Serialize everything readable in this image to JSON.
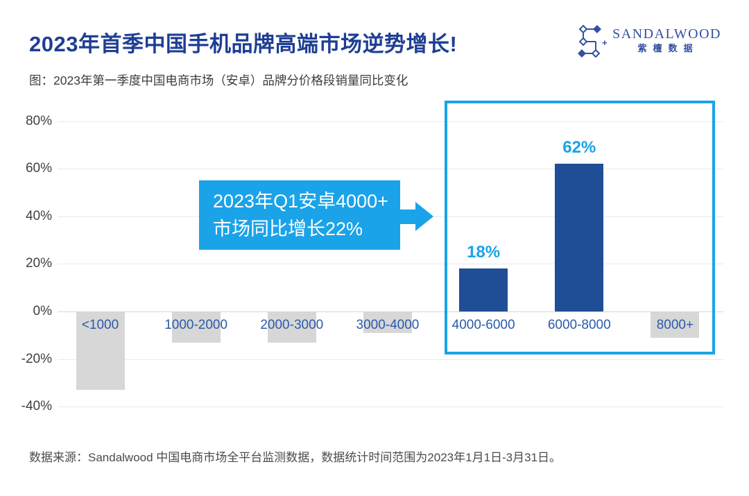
{
  "header": {
    "title": "2023年首季中国手机品牌高端市场逆势增长!",
    "subtitle": "图：2023年第一季度中国电商市场（安卓）品牌分价格段销量同比变化"
  },
  "logo": {
    "name_en": "SANDALWOOD",
    "name_cn": "紫檀数据",
    "mark": "dots-and-diamonds-constellation-icon",
    "color": "#33519E"
  },
  "chart_data": {
    "type": "bar",
    "title": "2023年第一季度中国电商市场（安卓）品牌分价格段销量同比变化",
    "categories": [
      "<1000",
      "1000-2000",
      "2000-3000",
      "3000-4000",
      "4000-6000",
      "6000-8000",
      "8000+"
    ],
    "values": [
      -33,
      -13,
      -13,
      -9,
      18,
      62,
      -11
    ],
    "data_labels": [
      "",
      "",
      "",
      "",
      "18%",
      "62%",
      ""
    ],
    "unit": "%",
    "xlabel": "",
    "ylabel": "",
    "yticks": [
      80,
      60,
      40,
      20,
      0,
      -20,
      -40
    ],
    "ylim": [
      -45,
      85
    ],
    "grid": true,
    "legend": false,
    "bar_colors": {
      "positive": "#1F4E96",
      "negative": "#D7D7D7"
    },
    "value_label_color": "#1AA3E8",
    "highlight_box": {
      "covers_categories": [
        "4000-6000",
        "6000-8000",
        "8000+"
      ],
      "border_color": "#1AA3E8"
    }
  },
  "annotation": {
    "line1": "2023年Q1安卓4000+",
    "line2": "市场同比增长22%",
    "bg_color": "#1AA3E8"
  },
  "footer": {
    "source": "数据来源：Sandalwood 中国电商市场全平台监测数据，数据统计时间范围为2023年1月1日-3月31日。"
  },
  "colors": {
    "title_navy": "#1E3E94",
    "bar_navy": "#1F4E96",
    "accent_blue": "#1AA3E8",
    "bar_gray": "#D7D7D7",
    "category_label_blue": "#2B5AA9"
  }
}
